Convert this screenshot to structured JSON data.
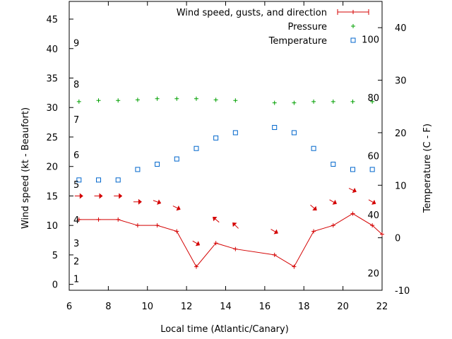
{
  "chart_data": {
    "type": "line",
    "xlabel": "Local time (Atlantic/Canary)",
    "ylabel_left": "Wind speed (kt - Beaufort)",
    "ylabel_right": "Temperature (C - F)",
    "xlim": [
      6,
      22
    ],
    "ylim_left": [
      -1,
      48
    ],
    "ylim_right": [
      -10,
      45
    ],
    "x_ticks": [
      6,
      8,
      10,
      12,
      14,
      16,
      18,
      20,
      22
    ],
    "y_ticks_left": [
      0,
      5,
      10,
      15,
      20,
      25,
      30,
      35,
      40,
      45
    ],
    "y_ticks_right": [
      -10,
      0,
      10,
      20,
      30,
      40
    ],
    "beaufort_labels": [
      {
        "label": "1",
        "kt": 1
      },
      {
        "label": "2",
        "kt": 4
      },
      {
        "label": "3",
        "kt": 7
      },
      {
        "label": "4",
        "kt": 11
      },
      {
        "label": "5",
        "kt": 17
      },
      {
        "label": "6",
        "kt": 22
      },
      {
        "label": "7",
        "kt": 28
      },
      {
        "label": "8",
        "kt": 34
      },
      {
        "label": "9",
        "kt": 41
      }
    ],
    "fahrenheit_labels": [
      {
        "label": "20",
        "c": -6.7
      },
      {
        "label": "40",
        "c": 4.4
      },
      {
        "label": "60",
        "c": 15.6
      },
      {
        "label": "80",
        "c": 26.7
      },
      {
        "label": "100",
        "c": 37.8
      }
    ],
    "legend": {
      "wind": "Wind speed, gusts, and direction",
      "pressure": "Pressure",
      "temperature": "Temperature"
    },
    "colors": {
      "wind": "#d40000",
      "pressure": "#00a000",
      "temperature": "#0066cc"
    },
    "series": [
      {
        "name": "Wind speed, gusts, and direction",
        "x": [
          6.5,
          7.5,
          8.5,
          9.5,
          10.5,
          11.5,
          12.5,
          13.5,
          14.5,
          16.5,
          17.5,
          18.5,
          19.5,
          20.5,
          21.5,
          22
        ],
        "values": [
          11,
          11,
          11,
          10,
          10,
          9,
          3,
          7,
          6,
          5,
          3,
          9,
          10,
          12,
          10,
          8.5
        ]
      },
      {
        "name": "Pressure",
        "x": [
          6.5,
          7.5,
          8.5,
          9.5,
          10.5,
          11.5,
          12.5,
          13.5,
          14.5,
          16.5,
          17.5,
          18.5,
          19.5,
          20.5,
          21.5
        ],
        "values": [
          31,
          31.2,
          31.2,
          31.3,
          31.5,
          31.5,
          31.5,
          31.3,
          31.2,
          30.8,
          30.8,
          31,
          31,
          31,
          31
        ]
      },
      {
        "name": "Temperature",
        "x": [
          6.5,
          7.5,
          8.5,
          9.5,
          10.5,
          11.5,
          12.5,
          13.5,
          14.5,
          16.5,
          17.5,
          18.5,
          19.5,
          20.5,
          21.5
        ],
        "values": [
          11,
          11,
          11,
          13,
          14,
          15,
          17,
          19,
          20,
          21,
          20,
          17,
          14,
          13,
          13
        ]
      }
    ],
    "wind_direction_arrows": [
      {
        "x": 6.5,
        "kt": 15,
        "angle_deg": 0
      },
      {
        "x": 7.5,
        "kt": 15,
        "angle_deg": 0
      },
      {
        "x": 8.5,
        "kt": 15,
        "angle_deg": 0
      },
      {
        "x": 9.5,
        "kt": 14,
        "angle_deg": 0
      },
      {
        "x": 10.5,
        "kt": 14,
        "angle_deg": 20
      },
      {
        "x": 11.5,
        "kt": 13,
        "angle_deg": 25
      },
      {
        "x": 12.5,
        "kt": 7,
        "angle_deg": 30
      },
      {
        "x": 13.5,
        "kt": 11,
        "angle_deg": -140
      },
      {
        "x": 14.5,
        "kt": 10,
        "angle_deg": -135
      },
      {
        "x": 16.5,
        "kt": 9,
        "angle_deg": 30
      },
      {
        "x": 18.5,
        "kt": 13,
        "angle_deg": 40
      },
      {
        "x": 19.5,
        "kt": 14,
        "angle_deg": 30
      },
      {
        "x": 20.5,
        "kt": 16,
        "angle_deg": 25
      },
      {
        "x": 21.5,
        "kt": 14,
        "angle_deg": 30
      }
    ]
  }
}
